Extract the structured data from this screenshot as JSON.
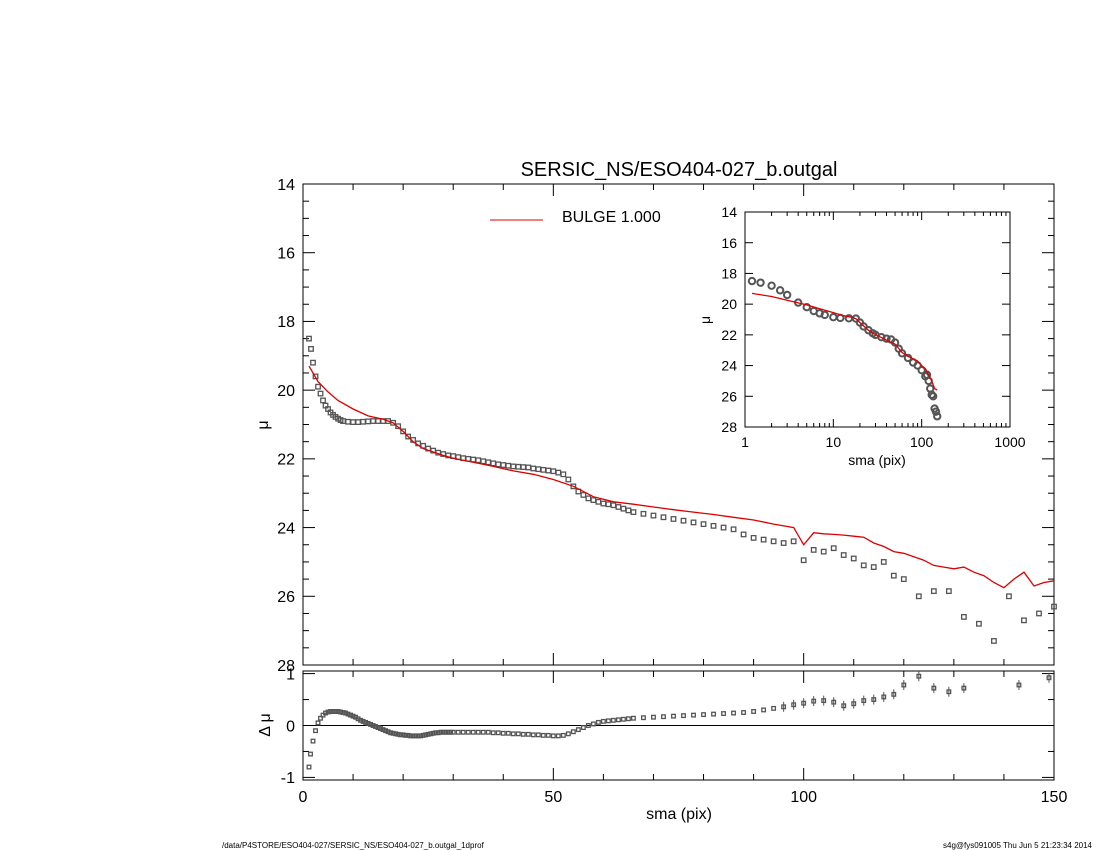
{
  "title": "SERSIC_NS/ESO404-027_b.outgal",
  "footer": {
    "left": "/data/P4STORE/ESO404-027/SERSIC_NS/ESO404-027_b.outgal_1dprof",
    "right": "s4g@fys091005  Thu Jun  5 21:23:34 2014"
  },
  "colors": {
    "model": "#dd0000",
    "data": "#555555",
    "axis": "#000000"
  },
  "chart_data": [
    {
      "panel": "main",
      "type": "scatter",
      "xlabel": "",
      "ylabel": "μ",
      "xlim": [
        0,
        150
      ],
      "ylim": [
        28,
        14
      ],
      "y_ticks": [
        "14",
        "16",
        "18",
        "20",
        "22",
        "24",
        "26",
        "28"
      ],
      "legend": {
        "label": "BULGE  1.000",
        "placement": "top-center"
      },
      "series": [
        {
          "name": "data",
          "kind": "points",
          "x": [
            1.2,
            1.6,
            2.0,
            2.5,
            3.0,
            3.5,
            4.0,
            4.5,
            5.0,
            5.5,
            6.0,
            6.5,
            7.0,
            7.5,
            8.0,
            9.0,
            10.0,
            11.0,
            12.0,
            13.0,
            14.0,
            15.0,
            16.0,
            17.0,
            18.0,
            19.0,
            20.0,
            21.0,
            22.0,
            23.0,
            24.0,
            25.0,
            26.0,
            27.0,
            28.0,
            29.0,
            30.0,
            31.0,
            32.0,
            33.0,
            34.0,
            35.0,
            36.0,
            37.0,
            38.0,
            39.0,
            40.0,
            41.0,
            42.0,
            43.0,
            44.0,
            45.0,
            46.0,
            47.0,
            48.0,
            49.0,
            50.0,
            51.0,
            52.0,
            53.0,
            54.0,
            55.0,
            56.0,
            57.0,
            58.0,
            59.0,
            60.0,
            61.0,
            62.0,
            63.0,
            64.0,
            65.0,
            66.0,
            68.0,
            70.0,
            72.0,
            74.0,
            76.0,
            78.0,
            80.0,
            82.0,
            84.0,
            86.0,
            88.0,
            90.0,
            92.0,
            94.0,
            96.0,
            98.0,
            100.0,
            102.0,
            104.0,
            106.0,
            108.0,
            110.0,
            112.0,
            114.0,
            116.0,
            118.0,
            120.0,
            123.0,
            126.0,
            129.0,
            132.0,
            135.0,
            138.0,
            141.0,
            144.0,
            147.0,
            150.0
          ],
          "y": [
            18.5,
            18.8,
            19.2,
            19.6,
            19.9,
            20.1,
            20.3,
            20.45,
            20.55,
            20.65,
            20.72,
            20.78,
            20.83,
            20.87,
            20.9,
            20.92,
            20.93,
            20.93,
            20.92,
            20.91,
            20.9,
            20.9,
            20.9,
            20.9,
            20.95,
            21.05,
            21.2,
            21.35,
            21.45,
            21.55,
            21.62,
            21.7,
            21.76,
            21.82,
            21.86,
            21.9,
            21.92,
            21.95,
            21.98,
            22.0,
            22.02,
            22.04,
            22.07,
            22.1,
            22.13,
            22.16,
            22.18,
            22.2,
            22.22,
            22.23,
            22.24,
            22.25,
            22.28,
            22.3,
            22.32,
            22.34,
            22.36,
            22.4,
            22.45,
            22.6,
            22.8,
            22.95,
            23.05,
            23.15,
            23.2,
            23.25,
            23.3,
            23.32,
            23.35,
            23.4,
            23.45,
            23.5,
            23.55,
            23.6,
            23.65,
            23.7,
            23.75,
            23.8,
            23.85,
            23.9,
            23.95,
            24.0,
            24.05,
            24.2,
            24.3,
            24.35,
            24.4,
            24.45,
            24.4,
            24.95,
            24.65,
            24.7,
            24.6,
            24.8,
            24.9,
            25.1,
            25.15,
            25.0,
            25.4,
            25.5,
            26.0,
            25.85,
            25.85,
            26.6,
            26.8,
            27.3,
            26.0,
            26.7,
            26.5,
            26.3
          ]
        },
        {
          "name": "BULGE  1.000",
          "kind": "line",
          "x": [
            1.2,
            2,
            3,
            5,
            7,
            10,
            13,
            16,
            18,
            20,
            22,
            24,
            26,
            28,
            30,
            34,
            38,
            42,
            46,
            50,
            54,
            58,
            62,
            66,
            70,
            74,
            78,
            82,
            86,
            90,
            94,
            98,
            100,
            102,
            104,
            106,
            108,
            110,
            112,
            114,
            116,
            118,
            120,
            122,
            124,
            126,
            128,
            130,
            132,
            134,
            136,
            138,
            140,
            142,
            144,
            146,
            148,
            150
          ],
          "y": [
            19.3,
            19.5,
            19.75,
            20.05,
            20.3,
            20.55,
            20.75,
            20.85,
            20.95,
            21.2,
            21.5,
            21.7,
            21.8,
            21.9,
            21.98,
            22.1,
            22.22,
            22.35,
            22.45,
            22.6,
            22.8,
            23.1,
            23.25,
            23.32,
            23.4,
            23.48,
            23.55,
            23.62,
            23.7,
            23.78,
            23.9,
            24.0,
            24.5,
            24.15,
            24.18,
            24.2,
            24.22,
            24.25,
            24.28,
            24.45,
            24.55,
            24.7,
            24.75,
            24.85,
            24.95,
            25.1,
            25.15,
            25.2,
            25.15,
            25.3,
            25.4,
            25.6,
            25.75,
            25.5,
            25.3,
            25.7,
            25.6,
            25.55
          ]
        }
      ]
    },
    {
      "panel": "inset",
      "type": "scatter",
      "xlabel": "sma (pix)",
      "ylabel": "μ",
      "xscale": "log",
      "xlim": [
        1,
        1000
      ],
      "ylim": [
        28,
        14
      ],
      "x_ticks": [
        "1",
        "10",
        "100",
        "1000"
      ],
      "y_ticks": [
        "14",
        "16",
        "18",
        "20",
        "22",
        "24",
        "26",
        "28"
      ],
      "series": [
        {
          "name": "data",
          "kind": "points",
          "x": [
            1.2,
            1.5,
            2,
            2.5,
            3,
            4,
            5,
            6,
            7,
            8,
            10,
            12,
            15,
            18,
            20,
            22,
            25,
            28,
            30,
            35,
            40,
            45,
            50,
            55,
            60,
            70,
            80,
            90,
            100,
            110,
            115,
            120,
            125,
            130,
            135,
            140,
            145,
            150
          ],
          "y": [
            18.5,
            18.6,
            18.8,
            19.1,
            19.4,
            19.9,
            20.2,
            20.45,
            20.6,
            20.7,
            20.85,
            20.9,
            20.92,
            20.94,
            21.2,
            21.45,
            21.7,
            21.9,
            22.0,
            22.15,
            22.25,
            22.3,
            22.5,
            22.9,
            23.2,
            23.5,
            23.8,
            24.0,
            24.3,
            24.7,
            24.6,
            25.0,
            25.5,
            25.9,
            26.0,
            26.8,
            27.0,
            27.3
          ]
        },
        {
          "name": "BULGE  1.000",
          "kind": "line",
          "x": [
            1.2,
            2,
            3,
            5,
            7,
            10,
            13,
            16,
            18,
            20,
            25,
            30,
            40,
            50,
            60,
            70,
            80,
            90,
            100,
            110,
            120,
            130,
            140,
            150
          ],
          "y": [
            19.3,
            19.5,
            19.75,
            20.05,
            20.3,
            20.55,
            20.75,
            20.85,
            20.95,
            21.2,
            21.7,
            21.98,
            22.35,
            22.6,
            23.15,
            23.4,
            23.55,
            23.7,
            24.0,
            24.2,
            24.6,
            25.0,
            25.5,
            25.6
          ]
        }
      ]
    },
    {
      "panel": "residual",
      "type": "scatter",
      "xlabel": "sma (pix)",
      "ylabel": "Δ μ",
      "xlim": [
        0,
        150
      ],
      "ylim": [
        -1.05,
        1.05
      ],
      "x_ticks": [
        "0",
        "50",
        "100",
        "150"
      ],
      "y_ticks": [
        "-1",
        "0",
        "1"
      ],
      "series": [
        {
          "name": "residual",
          "kind": "points",
          "x": [
            1.2,
            1.5,
            2,
            2.5,
            3,
            3.5,
            4,
            4.5,
            5,
            5.5,
            6,
            6.5,
            7,
            7.5,
            8,
            8.5,
            9,
            9.5,
            10,
            10.5,
            11,
            11.5,
            12,
            12.5,
            13,
            13.5,
            14,
            14.5,
            15,
            15.5,
            16,
            16.5,
            17,
            17.5,
            18,
            18.5,
            19,
            19.5,
            20,
            20.5,
            21,
            21.5,
            22,
            22.5,
            23,
            23.5,
            24,
            24.5,
            25,
            25.5,
            26,
            26.5,
            27,
            27.5,
            28,
            28.5,
            29,
            29.5,
            30,
            31,
            32,
            33,
            34,
            35,
            36,
            37,
            38,
            39,
            40,
            41,
            42,
            43,
            44,
            45,
            46,
            47,
            48,
            49,
            50,
            51,
            52,
            53,
            54,
            55,
            56,
            57,
            58,
            59,
            60,
            61,
            62,
            63,
            64,
            65,
            66,
            68,
            70,
            72,
            74,
            76,
            78,
            80,
            82,
            84,
            86,
            88,
            90,
            92,
            94,
            96,
            98,
            100,
            102,
            104,
            106,
            108,
            110,
            112,
            114,
            116,
            118,
            120,
            123,
            126,
            129,
            132,
            143,
            149
          ],
          "y": [
            -0.8,
            -0.55,
            -0.3,
            -0.1,
            0.05,
            0.14,
            0.2,
            0.24,
            0.26,
            0.27,
            0.27,
            0.27,
            0.27,
            0.26,
            0.25,
            0.24,
            0.22,
            0.2,
            0.18,
            0.16,
            0.13,
            0.1,
            0.08,
            0.06,
            0.04,
            0.02,
            0.0,
            -0.02,
            -0.04,
            -0.06,
            -0.08,
            -0.1,
            -0.12,
            -0.14,
            -0.15,
            -0.16,
            -0.17,
            -0.18,
            -0.18,
            -0.19,
            -0.19,
            -0.2,
            -0.2,
            -0.2,
            -0.2,
            -0.2,
            -0.19,
            -0.18,
            -0.17,
            -0.16,
            -0.15,
            -0.14,
            -0.14,
            -0.13,
            -0.13,
            -0.13,
            -0.13,
            -0.13,
            -0.13,
            -0.13,
            -0.13,
            -0.13,
            -0.13,
            -0.13,
            -0.13,
            -0.13,
            -0.14,
            -0.14,
            -0.15,
            -0.15,
            -0.16,
            -0.16,
            -0.17,
            -0.17,
            -0.18,
            -0.18,
            -0.19,
            -0.19,
            -0.2,
            -0.2,
            -0.19,
            -0.16,
            -0.12,
            -0.08,
            -0.04,
            0.0,
            0.03,
            0.06,
            0.08,
            0.09,
            0.1,
            0.11,
            0.12,
            0.13,
            0.14,
            0.15,
            0.16,
            0.17,
            0.18,
            0.19,
            0.2,
            0.21,
            0.22,
            0.23,
            0.24,
            0.25,
            0.27,
            0.3,
            0.33,
            0.36,
            0.4,
            0.43,
            0.47,
            0.48,
            0.45,
            0.38,
            0.42,
            0.48,
            0.5,
            0.55,
            0.6,
            0.78,
            0.95,
            0.72,
            0.65,
            0.72,
            0.78,
            0.92
          ]
        }
      ]
    }
  ]
}
